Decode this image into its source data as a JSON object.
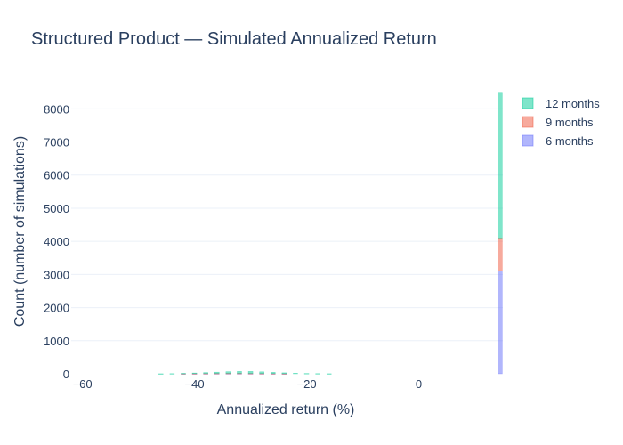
{
  "chart_data": {
    "type": "bar",
    "barmode": "stack",
    "title": "Structured Product — Simulated Annualized Return",
    "xlabel": "Annualized return (%)",
    "ylabel": "Count (number of simulations)",
    "xlim": [
      -62,
      15
    ],
    "ylim": [
      0,
      8600
    ],
    "xticks": [
      -60,
      -40,
      -20,
      0
    ],
    "xtick_labels": [
      "−60",
      "−40",
      "−20",
      "0"
    ],
    "yticks": [
      0,
      1000,
      2000,
      3000,
      4000,
      5000,
      6000,
      7000,
      8000
    ],
    "grid": true,
    "legend_position": "top-right",
    "bin_width": 0.8,
    "series": [
      {
        "name": "6 months",
        "color": "#636efa",
        "bins": [
          {
            "x": -42,
            "y": 2
          },
          {
            "x": -40,
            "y": 3
          },
          {
            "x": -38,
            "y": 4
          },
          {
            "x": -36,
            "y": 5
          },
          {
            "x": -34,
            "y": 6
          },
          {
            "x": -32,
            "y": 6
          },
          {
            "x": -30,
            "y": 5
          },
          {
            "x": -28,
            "y": 4
          },
          {
            "x": -26,
            "y": 3
          },
          {
            "x": -24,
            "y": 2
          },
          {
            "x": 14.5,
            "y": 3100
          }
        ]
      },
      {
        "name": "9 months",
        "color": "#ef553b",
        "bins": [
          {
            "x": -42,
            "y": 2
          },
          {
            "x": -40,
            "y": 3
          },
          {
            "x": -38,
            "y": 5
          },
          {
            "x": -36,
            "y": 6
          },
          {
            "x": -34,
            "y": 7
          },
          {
            "x": -32,
            "y": 7
          },
          {
            "x": -30,
            "y": 6
          },
          {
            "x": -28,
            "y": 5
          },
          {
            "x": -26,
            "y": 3
          },
          {
            "x": -24,
            "y": 2
          },
          {
            "x": 14.5,
            "y": 1000
          }
        ]
      },
      {
        "name": "12 months",
        "color": "#00cc96",
        "bins": [
          {
            "x": -46,
            "y": 2
          },
          {
            "x": -44,
            "y": 5
          },
          {
            "x": -42,
            "y": 10
          },
          {
            "x": -40,
            "y": 18
          },
          {
            "x": -38,
            "y": 28
          },
          {
            "x": -36,
            "y": 38
          },
          {
            "x": -34,
            "y": 50
          },
          {
            "x": -32,
            "y": 58
          },
          {
            "x": -30,
            "y": 60
          },
          {
            "x": -28,
            "y": 50
          },
          {
            "x": -26,
            "y": 38
          },
          {
            "x": -24,
            "y": 26
          },
          {
            "x": -22,
            "y": 16
          },
          {
            "x": -20,
            "y": 10
          },
          {
            "x": -18,
            "y": 6
          },
          {
            "x": -16,
            "y": 3
          },
          {
            "x": 14.5,
            "y": 4400
          }
        ]
      }
    ],
    "legend_order": [
      "12 months",
      "9 months",
      "6 months"
    ]
  }
}
